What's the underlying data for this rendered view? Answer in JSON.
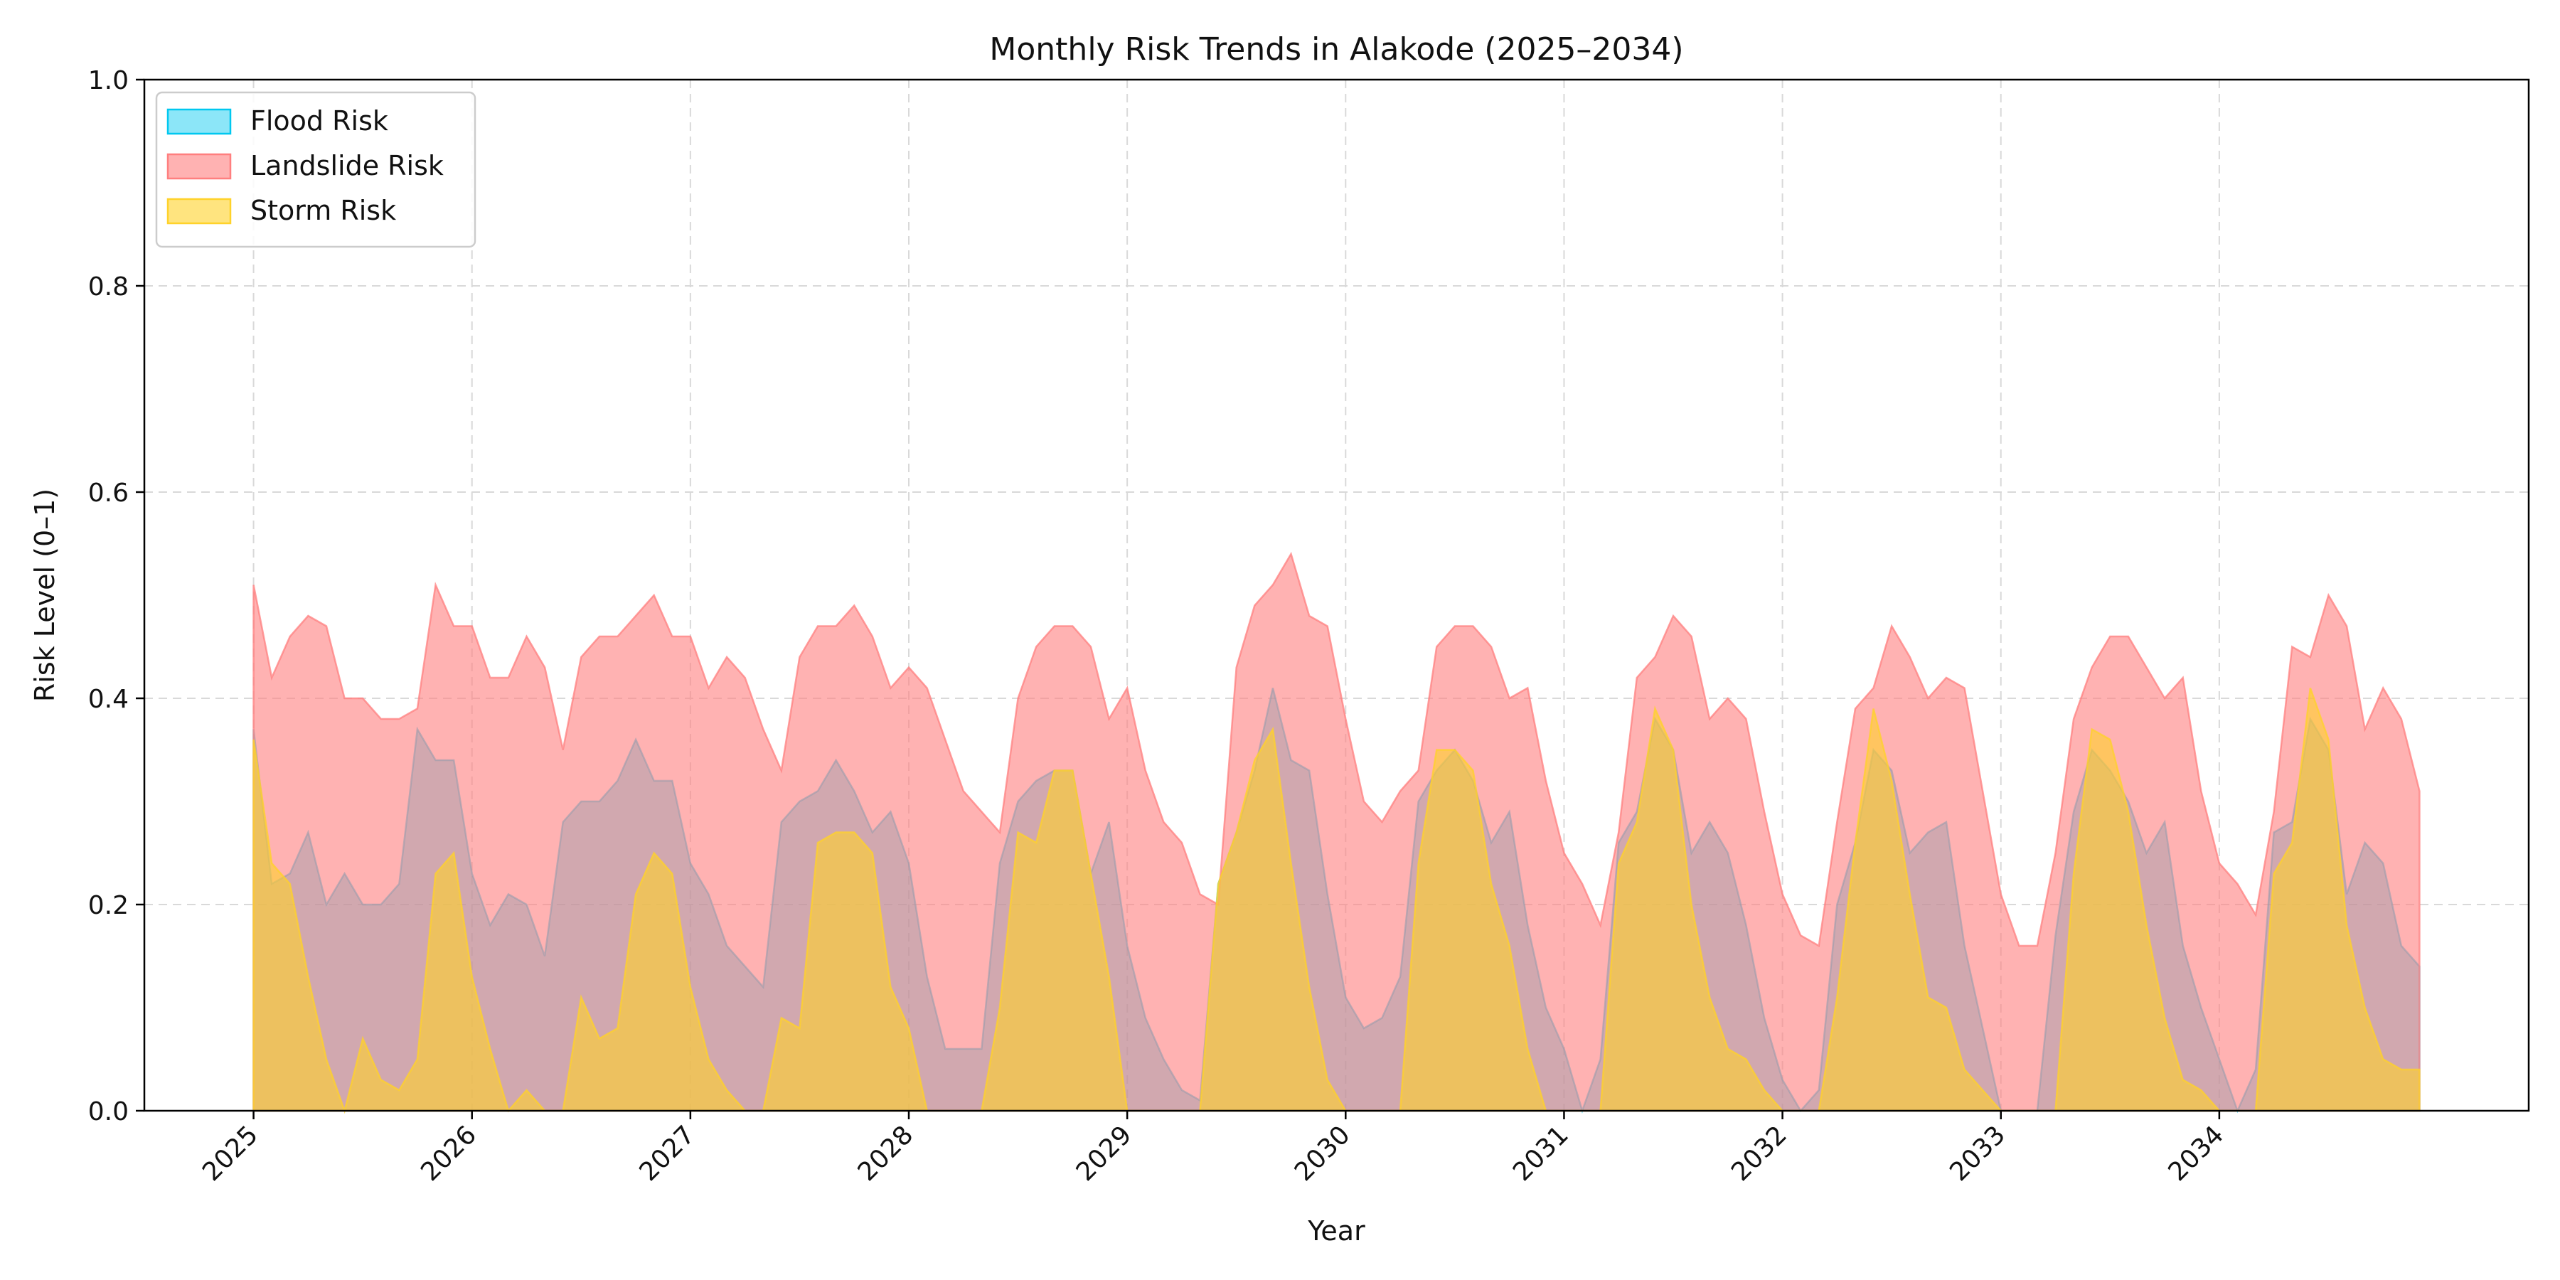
{
  "chart_data": {
    "type": "area",
    "title": "Monthly Risk Trends in Alakode (2025–2034)",
    "xlabel": "Year",
    "ylabel": "Risk Level (0–1)",
    "xlim": [
      "2024-07",
      "2035-06"
    ],
    "ylim": [
      0,
      1.0
    ],
    "grid": true,
    "legend_position": "top-left",
    "y_ticks": [
      "0.0",
      "0.2",
      "0.4",
      "0.6",
      "0.8",
      "1.0"
    ],
    "x_ticks": [
      "2025",
      "2026",
      "2027",
      "2028",
      "2029",
      "2030",
      "2031",
      "2032",
      "2033",
      "2034"
    ],
    "x_tick_rotation": 45,
    "months": [
      "2025-01",
      "2025-02",
      "2025-03",
      "2025-04",
      "2025-05",
      "2025-06",
      "2025-07",
      "2025-08",
      "2025-09",
      "2025-10",
      "2025-11",
      "2025-12",
      "2026-01",
      "2026-02",
      "2026-03",
      "2026-04",
      "2026-05",
      "2026-06",
      "2026-07",
      "2026-08",
      "2026-09",
      "2026-10",
      "2026-11",
      "2026-12",
      "2027-01",
      "2027-02",
      "2027-03",
      "2027-04",
      "2027-05",
      "2027-06",
      "2027-07",
      "2027-08",
      "2027-09",
      "2027-10",
      "2027-11",
      "2027-12",
      "2028-01",
      "2028-02",
      "2028-03",
      "2028-04",
      "2028-05",
      "2028-06",
      "2028-07",
      "2028-08",
      "2028-09",
      "2028-10",
      "2028-11",
      "2028-12",
      "2029-01",
      "2029-02",
      "2029-03",
      "2029-04",
      "2029-05",
      "2029-06",
      "2029-07",
      "2029-08",
      "2029-09",
      "2029-10",
      "2029-11",
      "2029-12",
      "2030-01",
      "2030-02",
      "2030-03",
      "2030-04",
      "2030-05",
      "2030-06",
      "2030-07",
      "2030-08",
      "2030-09",
      "2030-10",
      "2030-11",
      "2030-12",
      "2031-01",
      "2031-02",
      "2031-03",
      "2031-04",
      "2031-05",
      "2031-06",
      "2031-07",
      "2031-08",
      "2031-09",
      "2031-10",
      "2031-11",
      "2031-12",
      "2032-01",
      "2032-02",
      "2032-03",
      "2032-04",
      "2032-05",
      "2032-06",
      "2032-07",
      "2032-08",
      "2032-09",
      "2032-10",
      "2032-11",
      "2032-12",
      "2033-01",
      "2033-02",
      "2033-03",
      "2033-04",
      "2033-05",
      "2033-06",
      "2033-07",
      "2033-08",
      "2033-09",
      "2033-10",
      "2033-11",
      "2033-12",
      "2034-01",
      "2034-02",
      "2034-03",
      "2034-04",
      "2034-05",
      "2034-06",
      "2034-07",
      "2034-08",
      "2034-09",
      "2034-10",
      "2034-11",
      "2034-12"
    ],
    "series": [
      {
        "name": "Flood Risk",
        "color": "#00c8f0",
        "opacity": 0.45,
        "values": [
          0.37,
          0.22,
          0.23,
          0.27,
          0.2,
          0.23,
          0.2,
          0.2,
          0.22,
          0.37,
          0.34,
          0.34,
          0.23,
          0.18,
          0.21,
          0.2,
          0.15,
          0.28,
          0.3,
          0.3,
          0.32,
          0.36,
          0.32,
          0.32,
          0.24,
          0.21,
          0.16,
          0.14,
          0.12,
          0.28,
          0.3,
          0.31,
          0.34,
          0.31,
          0.27,
          0.29,
          0.24,
          0.13,
          0.06,
          0.06,
          0.06,
          0.24,
          0.3,
          0.32,
          0.33,
          0.33,
          0.23,
          0.28,
          0.16,
          0.09,
          0.05,
          0.02,
          0.01,
          0.22,
          0.27,
          0.33,
          0.41,
          0.34,
          0.33,
          0.21,
          0.11,
          0.08,
          0.09,
          0.13,
          0.3,
          0.33,
          0.35,
          0.32,
          0.26,
          0.29,
          0.18,
          0.1,
          0.06,
          0.0,
          0.05,
          0.26,
          0.29,
          0.38,
          0.35,
          0.25,
          0.28,
          0.25,
          0.18,
          0.09,
          0.03,
          0.0,
          0.02,
          0.2,
          0.26,
          0.35,
          0.33,
          0.25,
          0.27,
          0.28,
          0.16,
          0.08,
          0.0,
          0.0,
          0.0,
          0.17,
          0.29,
          0.35,
          0.33,
          0.3,
          0.25,
          0.28,
          0.16,
          0.1,
          0.05,
          0.0,
          0.04,
          0.27,
          0.28,
          0.38,
          0.35,
          0.21,
          0.26,
          0.24,
          0.16,
          0.14
        ]
      },
      {
        "name": "Landslide Risk",
        "color": "#ff7f7f",
        "opacity": 0.6,
        "values": [
          0.51,
          0.42,
          0.46,
          0.48,
          0.47,
          0.4,
          0.4,
          0.38,
          0.38,
          0.39,
          0.51,
          0.47,
          0.47,
          0.42,
          0.42,
          0.46,
          0.43,
          0.35,
          0.44,
          0.46,
          0.46,
          0.48,
          0.5,
          0.46,
          0.46,
          0.41,
          0.44,
          0.42,
          0.37,
          0.33,
          0.44,
          0.47,
          0.47,
          0.49,
          0.46,
          0.41,
          0.43,
          0.41,
          0.36,
          0.31,
          0.29,
          0.27,
          0.4,
          0.45,
          0.47,
          0.47,
          0.45,
          0.38,
          0.41,
          0.33,
          0.28,
          0.26,
          0.21,
          0.2,
          0.43,
          0.49,
          0.51,
          0.54,
          0.48,
          0.47,
          0.38,
          0.3,
          0.28,
          0.31,
          0.33,
          0.45,
          0.47,
          0.47,
          0.45,
          0.4,
          0.41,
          0.32,
          0.25,
          0.22,
          0.18,
          0.27,
          0.42,
          0.44,
          0.48,
          0.46,
          0.38,
          0.4,
          0.38,
          0.29,
          0.21,
          0.17,
          0.16,
          0.28,
          0.39,
          0.41,
          0.47,
          0.44,
          0.4,
          0.42,
          0.41,
          0.31,
          0.21,
          0.16,
          0.16,
          0.25,
          0.38,
          0.43,
          0.46,
          0.46,
          0.43,
          0.4,
          0.42,
          0.31,
          0.24,
          0.22,
          0.19,
          0.29,
          0.45,
          0.44,
          0.5,
          0.47,
          0.37,
          0.41,
          0.38,
          0.31
        ]
      },
      {
        "name": "Storm Risk",
        "color": "#ffd22a",
        "opacity": 0.6,
        "values": [
          0.36,
          0.24,
          0.22,
          0.13,
          0.05,
          0.0,
          0.07,
          0.03,
          0.02,
          0.05,
          0.23,
          0.25,
          0.13,
          0.06,
          0.0,
          0.02,
          0.0,
          0.0,
          0.11,
          0.07,
          0.08,
          0.21,
          0.25,
          0.23,
          0.12,
          0.05,
          0.02,
          0.0,
          0.0,
          0.09,
          0.08,
          0.26,
          0.27,
          0.27,
          0.25,
          0.12,
          0.08,
          0.0,
          0.0,
          0.0,
          0.0,
          0.1,
          0.27,
          0.26,
          0.33,
          0.33,
          0.23,
          0.13,
          0.0,
          0.0,
          0.0,
          0.0,
          0.0,
          0.22,
          0.27,
          0.34,
          0.37,
          0.24,
          0.12,
          0.03,
          0.0,
          0.0,
          0.0,
          0.0,
          0.24,
          0.35,
          0.35,
          0.33,
          0.22,
          0.16,
          0.06,
          0.0,
          0.0,
          0.0,
          0.0,
          0.24,
          0.28,
          0.39,
          0.35,
          0.2,
          0.11,
          0.06,
          0.05,
          0.02,
          0.0,
          0.0,
          0.0,
          0.11,
          0.26,
          0.39,
          0.32,
          0.21,
          0.11,
          0.1,
          0.04,
          0.02,
          0.0,
          0.0,
          0.0,
          0.0,
          0.23,
          0.37,
          0.36,
          0.29,
          0.18,
          0.09,
          0.03,
          0.02,
          0.0,
          0.0,
          0.0,
          0.23,
          0.26,
          0.41,
          0.36,
          0.18,
          0.1,
          0.05,
          0.04,
          0.04
        ]
      }
    ]
  }
}
